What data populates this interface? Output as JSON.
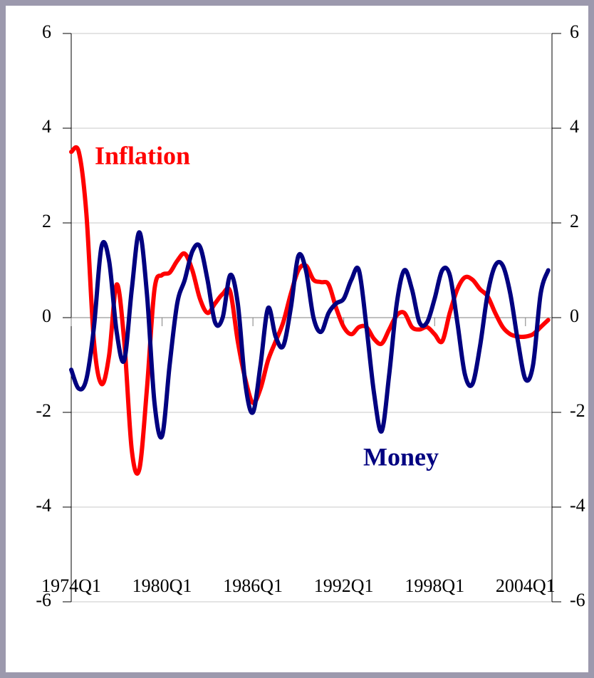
{
  "chart_data": {
    "type": "line",
    "annotations": [
      "Inflation",
      "Money"
    ],
    "x": [
      1974,
      1974.5,
      1975,
      1975.5,
      1976,
      1976.5,
      1977,
      1977.5,
      1978,
      1978.5,
      1979,
      1979.5,
      1980,
      1980.5,
      1981,
      1981.5,
      1982,
      1982.5,
      1983,
      1983.5,
      1984,
      1984.5,
      1985,
      1985.5,
      1986,
      1986.5,
      1987,
      1987.5,
      1988,
      1988.5,
      1989,
      1989.5,
      1990,
      1990.5,
      1991,
      1991.5,
      1992,
      1992.5,
      1993,
      1993.5,
      1994,
      1994.5,
      1995,
      1995.5,
      1996,
      1996.5,
      1997,
      1997.5,
      1998,
      1998.5,
      1999,
      1999.5,
      2000,
      2000.5,
      2001,
      2001.5,
      2002,
      2002.5,
      2003,
      2003.5,
      2004,
      2004.5,
      2005,
      2005.5
    ],
    "series": [
      {
        "name": "Inflation",
        "color": "#ff0000",
        "values": [
          3.5,
          3.5,
          2.2,
          -0.5,
          -1.4,
          -0.8,
          0.7,
          -0.5,
          -2.8,
          -3.2,
          -1.5,
          0.6,
          0.9,
          0.95,
          1.2,
          1.35,
          1.0,
          0.4,
          0.1,
          0.3,
          0.5,
          0.55,
          -0.5,
          -1.3,
          -1.8,
          -1.5,
          -0.9,
          -0.5,
          -0.1,
          0.5,
          1.0,
          1.1,
          0.8,
          0.75,
          0.7,
          0.2,
          -0.2,
          -0.35,
          -0.2,
          -0.2,
          -0.45,
          -0.55,
          -0.25,
          0.05,
          0.1,
          -0.2,
          -0.25,
          -0.2,
          -0.35,
          -0.5,
          0.1,
          0.6,
          0.85,
          0.8,
          0.6,
          0.45,
          0.1,
          -0.2,
          -0.35,
          -0.4,
          -0.4,
          -0.35,
          -0.2,
          -0.05
        ]
      },
      {
        "name": "Money",
        "color": "#000080",
        "axis": "y2",
        "values": [
          -1.1,
          -1.5,
          -1.3,
          -0.2,
          1.5,
          1.2,
          -0.3,
          -0.9,
          0.6,
          1.8,
          0.5,
          -1.8,
          -2.5,
          -1.0,
          0.3,
          0.8,
          1.4,
          1.5,
          0.8,
          -0.1,
          0.0,
          0.9,
          0.3,
          -1.4,
          -2.0,
          -1.0,
          0.2,
          -0.4,
          -0.6,
          0.2,
          1.3,
          1.0,
          0.0,
          -0.3,
          0.1,
          0.3,
          0.4,
          0.8,
          1.0,
          -0.2,
          -1.6,
          -2.4,
          -1.2,
          0.3,
          1.0,
          0.6,
          -0.1,
          -0.1,
          0.4,
          1.0,
          0.9,
          -0.1,
          -1.2,
          -1.4,
          -0.6,
          0.5,
          1.1,
          1.1,
          0.5,
          -0.5,
          -1.3,
          -1.0,
          0.5,
          1.0
        ]
      }
    ],
    "xlim": [
      1974,
      2005.75
    ],
    "xticks": [
      {
        "value": 1974,
        "label": "1974Q1"
      },
      {
        "value": 1980,
        "label": "1980Q1"
      },
      {
        "value": 1986,
        "label": "1986Q1"
      },
      {
        "value": 1992,
        "label": "1992Q1"
      },
      {
        "value": 1998,
        "label": "1998Q1"
      },
      {
        "value": 2004,
        "label": "2004Q1"
      }
    ],
    "ylim": [
      -6,
      6
    ],
    "yticks": [
      -6,
      -4,
      -2,
      0,
      2,
      4,
      6
    ],
    "y2lim": [
      -6,
      6
    ],
    "y2ticks": [
      -6,
      -4,
      -2,
      0,
      2,
      4,
      6
    ],
    "grid": true
  }
}
